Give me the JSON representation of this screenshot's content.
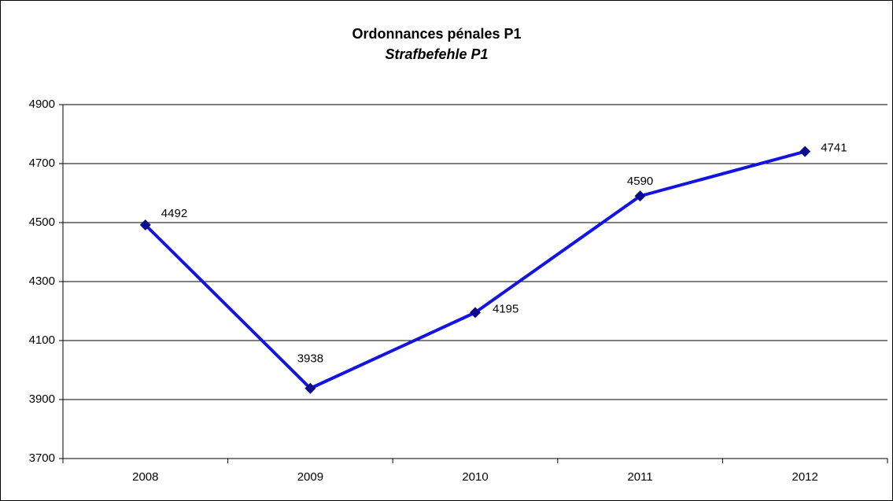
{
  "chart_data": {
    "type": "line",
    "title": "Ordonnances pénales P1",
    "subtitle": "Strafbefehle P1",
    "categories": [
      "2008",
      "2009",
      "2010",
      "2011",
      "2012"
    ],
    "series": [
      {
        "name": null,
        "color": "#1414e0",
        "marker_color": "#0a0a8c",
        "values": [
          4492,
          3938,
          4195,
          4590,
          4741
        ]
      }
    ],
    "ylim": [
      3700,
      4900
    ],
    "yticks": [
      3700,
      3900,
      4100,
      4300,
      4500,
      4700,
      4900
    ],
    "grid": true
  }
}
